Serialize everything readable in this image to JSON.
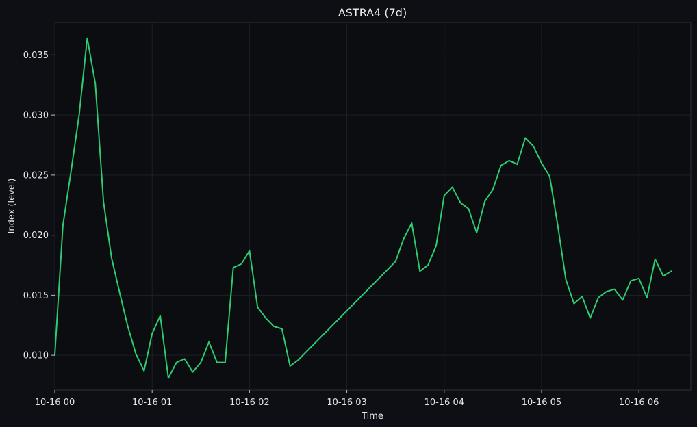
{
  "chart_data": {
    "type": "line",
    "title": "ASTRA4 (7d)",
    "xlabel": "Time",
    "ylabel": "Index (level)",
    "x_tick_labels": [
      "10-16 00",
      "10-16 01",
      "10-16 02",
      "10-16 03",
      "10-16 04",
      "10-16 05",
      "10-16 06"
    ],
    "y_tick_labels": [
      "0.010",
      "0.015",
      "0.020",
      "0.025",
      "0.030",
      "0.035"
    ],
    "y_ticks": [
      0.01,
      0.015,
      0.02,
      0.025,
      0.03,
      0.035
    ],
    "xlim": [
      "10-16 00:00",
      "10-16 06:32"
    ],
    "ylim": [
      0.0071,
      0.0377
    ],
    "grid": true,
    "line_color": "#2ecc71",
    "series": [
      {
        "x": [
          "00:00",
          "00:05",
          "00:10",
          "00:15",
          "00:20",
          "00:25",
          "00:30",
          "00:35",
          "00:40",
          "00:45",
          "00:50",
          "00:55",
          "01:00",
          "01:05",
          "01:10",
          "01:15",
          "01:20",
          "01:25",
          "01:30",
          "01:35",
          "01:40",
          "01:45",
          "01:50",
          "01:55",
          "02:00",
          "02:05",
          "02:10",
          "02:15",
          "02:20",
          "02:25",
          "02:30",
          "03:30",
          "03:35",
          "03:40",
          "03:45",
          "03:50",
          "03:55",
          "04:00",
          "04:05",
          "04:10",
          "04:15",
          "04:20",
          "04:25",
          "04:30",
          "04:35",
          "04:40",
          "04:45",
          "04:50",
          "04:55",
          "05:00",
          "05:05",
          "05:10",
          "05:15",
          "05:20",
          "05:25",
          "05:30",
          "05:35",
          "05:40",
          "05:45",
          "05:50",
          "05:55",
          "06:00",
          "06:05",
          "06:10",
          "06:15",
          "06:20"
        ],
        "y": [
          0.01,
          0.0208,
          0.0253,
          0.03,
          0.0364,
          0.0326,
          0.0228,
          0.0181,
          0.0152,
          0.0124,
          0.0101,
          0.0087,
          0.0118,
          0.0133,
          0.0081,
          0.0094,
          0.0097,
          0.0086,
          0.0094,
          0.0111,
          0.0094,
          0.0094,
          0.0173,
          0.0176,
          0.0187,
          0.014,
          0.0131,
          0.0124,
          0.0122,
          0.0091,
          0.0096,
          0.0178,
          0.0197,
          0.021,
          0.017,
          0.0175,
          0.0191,
          0.0233,
          0.024,
          0.0227,
          0.0222,
          0.0202,
          0.0228,
          0.0238,
          0.0258,
          0.0262,
          0.0259,
          0.0281,
          0.0274,
          0.026,
          0.0249,
          0.0208,
          0.0163,
          0.0143,
          0.0149,
          0.0131,
          0.0148,
          0.0153,
          0.0155,
          0.0146,
          0.0162,
          0.0164,
          0.0148,
          0.018,
          0.0166,
          0.017
        ]
      }
    ]
  }
}
